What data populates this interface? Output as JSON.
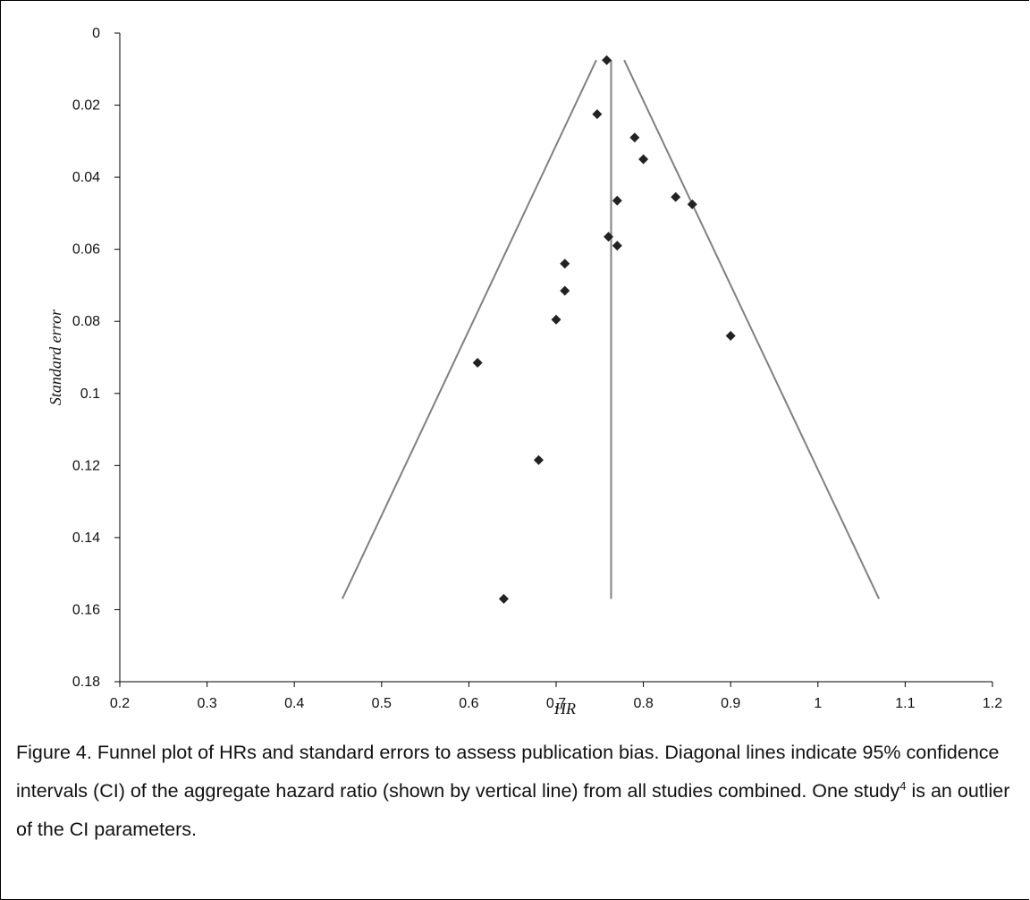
{
  "chart_data": {
    "type": "scatter",
    "xlabel": "HR",
    "ylabel": "Standard error",
    "xlim": [
      0.2,
      1.2
    ],
    "ylim": [
      0,
      0.18
    ],
    "y_inverted": true,
    "x_ticks": [
      "0.2",
      "0.3",
      "0.4",
      "0.5",
      "0.6",
      "0.7",
      "0.8",
      "0.9",
      "1",
      "1.1",
      "1.2"
    ],
    "y_ticks": [
      "0",
      "0.02",
      "0.04",
      "0.06",
      "0.08",
      "0.1",
      "0.12",
      "0.14",
      "0.16",
      "0.18"
    ],
    "grid": false,
    "marker_color": "#222222",
    "line_color": "#808080",
    "points": [
      {
        "x": 0.758,
        "y": 0.0075
      },
      {
        "x": 0.747,
        "y": 0.0225
      },
      {
        "x": 0.79,
        "y": 0.029
      },
      {
        "x": 0.8,
        "y": 0.035
      },
      {
        "x": 0.77,
        "y": 0.0465
      },
      {
        "x": 0.837,
        "y": 0.0455
      },
      {
        "x": 0.856,
        "y": 0.0475
      },
      {
        "x": 0.76,
        "y": 0.0565
      },
      {
        "x": 0.77,
        "y": 0.059
      },
      {
        "x": 0.71,
        "y": 0.064
      },
      {
        "x": 0.71,
        "y": 0.0715
      },
      {
        "x": 0.7,
        "y": 0.0795
      },
      {
        "x": 0.9,
        "y": 0.084
      },
      {
        "x": 0.61,
        "y": 0.0915
      },
      {
        "x": 0.68,
        "y": 0.1185
      },
      {
        "x": 0.64,
        "y": 0.157
      }
    ],
    "aggregate_hr": 0.763,
    "aggregate_line_y_range": [
      0.0075,
      0.157
    ],
    "ci_lower": [
      {
        "x": 0.746,
        "y": 0.0075
      },
      {
        "x": 0.455,
        "y": 0.157
      }
    ],
    "ci_upper": [
      {
        "x": 0.778,
        "y": 0.0075
      },
      {
        "x": 1.07,
        "y": 0.157
      }
    ]
  },
  "caption": {
    "part1": "Figure 4. Funnel plot of HRs and standard errors to assess publication bias. Diagonal lines indicate 95% confidence intervals (CI) of the aggregate hazard ratio (shown by vertical line) from all studies combined. One study",
    "superscript": "4",
    "part2": " is an outlier of the CI parameters."
  }
}
